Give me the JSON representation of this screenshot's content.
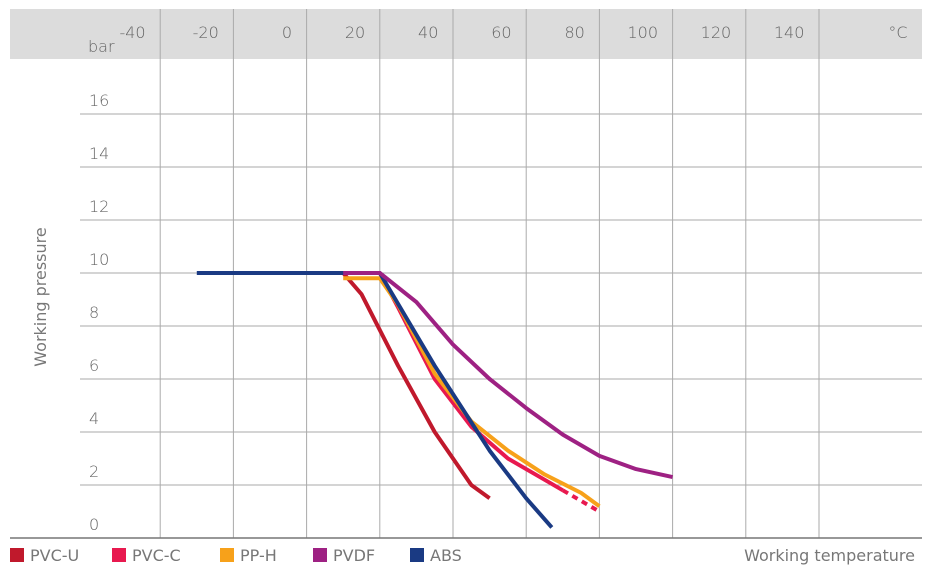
{
  "chart_data": {
    "type": "line",
    "xlabel": "Working temperature",
    "ylabel": "Working pressure",
    "x_unit": "°C",
    "y_unit": "bar",
    "x_ticks": [
      -40,
      -20,
      0,
      20,
      40,
      60,
      80,
      100,
      120,
      140
    ],
    "y_ticks": [
      0,
      2,
      4,
      6,
      8,
      10,
      12,
      14,
      16
    ],
    "xlim": [
      -40,
      140
    ],
    "ylim": [
      0,
      16
    ],
    "grid": true,
    "legend_position": "bottom-left",
    "series": [
      {
        "name": "PVC-U",
        "color": "#c0192c",
        "points": [
          [
            0,
            10
          ],
          [
            20,
            10
          ],
          [
            25,
            9.2
          ],
          [
            35,
            6.5
          ],
          [
            45,
            4
          ],
          [
            55,
            2
          ],
          [
            60,
            1.5
          ]
        ]
      },
      {
        "name": "PVC-C",
        "color": "#e8194f",
        "points": [
          [
            20,
            10
          ],
          [
            30,
            10
          ],
          [
            35,
            8.7
          ],
          [
            45,
            6
          ],
          [
            55,
            4.2
          ],
          [
            65,
            3
          ],
          [
            75,
            2.2
          ],
          [
            80,
            1.8
          ]
        ],
        "dashed_extension": [
          [
            80,
            1.8
          ],
          [
            85,
            1.4
          ],
          [
            90,
            1.0
          ]
        ]
      },
      {
        "name": "PP-H",
        "color": "#f7a11a",
        "points": [
          [
            20,
            9.8
          ],
          [
            30,
            9.8
          ],
          [
            35,
            8.8
          ],
          [
            45,
            6.2
          ],
          [
            55,
            4.4
          ],
          [
            65,
            3.3
          ],
          [
            75,
            2.4
          ],
          [
            85,
            1.7
          ],
          [
            90,
            1.2
          ]
        ]
      },
      {
        "name": "PVDF",
        "color": "#9e2183",
        "points": [
          [
            20,
            10
          ],
          [
            30,
            10
          ],
          [
            40,
            8.9
          ],
          [
            50,
            7.3
          ],
          [
            60,
            6
          ],
          [
            70,
            4.9
          ],
          [
            80,
            3.9
          ],
          [
            90,
            3.1
          ],
          [
            100,
            2.6
          ],
          [
            110,
            2.3
          ]
        ]
      },
      {
        "name": "ABS",
        "color": "#1a3a83",
        "points": [
          [
            -20,
            10
          ],
          [
            30,
            10
          ],
          [
            45,
            6.5
          ],
          [
            60,
            3.3
          ],
          [
            70,
            1.5
          ],
          [
            77,
            0.4
          ]
        ]
      }
    ]
  }
}
